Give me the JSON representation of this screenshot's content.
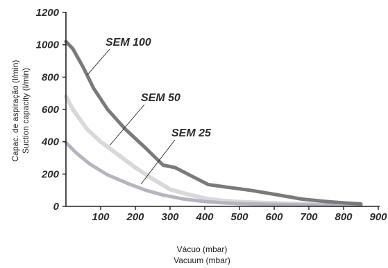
{
  "chart_data": {
    "type": "line",
    "title": "",
    "xlabel": [
      "Vácuo (mbar)",
      "Vacuum (mbar)"
    ],
    "ylabel": [
      "Capac. de aspiração (l/min)",
      "Suction capacity (l/min)"
    ],
    "xlim": [
      0,
      900
    ],
    "ylim": [
      0,
      1200
    ],
    "xticks": [
      "100",
      "200",
      "300",
      "400",
      "500",
      "600",
      "700",
      "800",
      "900"
    ],
    "yticks": [
      "0",
      "200",
      "400",
      "600",
      "800",
      "1000",
      "1200"
    ],
    "grid": false,
    "legend": "none",
    "series": [
      {
        "name": "SEM 100",
        "color": "#7a7a7a",
        "x": [
          0,
          20,
          50,
          80,
          120,
          170,
          230,
          280,
          315,
          360,
          410,
          460,
          530,
          600,
          680,
          750,
          800,
          850
        ],
        "y": [
          1020,
          975,
          860,
          730,
          600,
          480,
          360,
          255,
          240,
          190,
          135,
          120,
          100,
          75,
          45,
          30,
          22,
          15
        ]
      },
      {
        "name": "SEM 50",
        "color": "#d9d9d9",
        "x": [
          0,
          20,
          60,
          100,
          150,
          200,
          250,
          300,
          350,
          400,
          450,
          500,
          600,
          700,
          800,
          850
        ],
        "y": [
          680,
          600,
          480,
          400,
          320,
          240,
          170,
          105,
          75,
          50,
          35,
          28,
          20,
          14,
          10,
          8
        ]
      },
      {
        "name": "SEM 25",
        "color": "#b5b5c2",
        "x": [
          0,
          30,
          70,
          120,
          180,
          230,
          280,
          340,
          400,
          450,
          500,
          600,
          700,
          800,
          850
        ],
        "y": [
          395,
          330,
          260,
          195,
          140,
          100,
          70,
          45,
          30,
          22,
          17,
          12,
          9,
          7,
          6
        ]
      }
    ],
    "annotations": [
      "SEM 100",
      "SEM 50",
      "SEM 25"
    ]
  }
}
